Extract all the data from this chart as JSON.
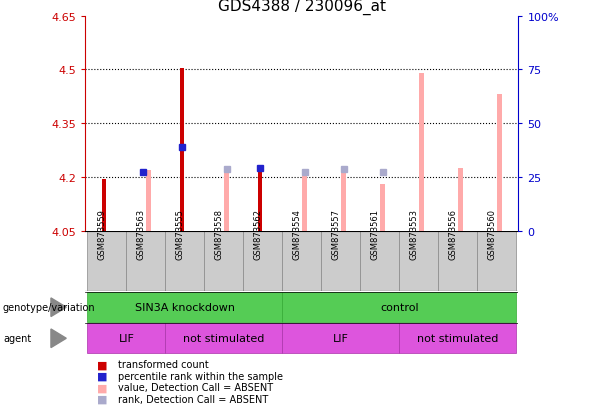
{
  "title": "GDS4388 / 230096_at",
  "samples": [
    "GSM873559",
    "GSM873563",
    "GSM873555",
    "GSM873558",
    "GSM873562",
    "GSM873554",
    "GSM873557",
    "GSM873561",
    "GSM873553",
    "GSM873556",
    "GSM873560"
  ],
  "ylim": [
    4.05,
    4.65
  ],
  "yticks": [
    4.05,
    4.2,
    4.35,
    4.5,
    4.65
  ],
  "y2labels": [
    "0",
    "25",
    "50",
    "75",
    "100%"
  ],
  "red_bars": [
    4.195,
    null,
    4.505,
    null,
    4.225,
    null,
    null,
    null,
    null,
    null,
    null
  ],
  "pink_bars": [
    null,
    4.22,
    null,
    4.225,
    null,
    4.21,
    4.225,
    4.18,
    4.49,
    4.225,
    4.43
  ],
  "blue_squares_y": [
    null,
    4.215,
    4.285,
    null,
    4.225,
    null,
    null,
    null,
    null,
    null,
    null
  ],
  "light_blue_squares_y": [
    null,
    null,
    null,
    4.222,
    null,
    4.215,
    4.222,
    4.215,
    null,
    null,
    null
  ],
  "genotype_groups": [
    {
      "label": "SIN3A knockdown",
      "start": 0,
      "end": 4,
      "color": "#66dd66"
    },
    {
      "label": "control",
      "start": 5,
      "end": 10,
      "color": "#66dd66"
    }
  ],
  "agent_groups": [
    {
      "label": "LIF",
      "start": 0,
      "end": 1,
      "color": "#dd66dd"
    },
    {
      "label": "not stimulated",
      "start": 2,
      "end": 4,
      "color": "#dd66dd"
    },
    {
      "label": "LIF",
      "start": 5,
      "end": 7,
      "color": "#dd66dd"
    },
    {
      "label": "not stimulated",
      "start": 8,
      "end": 10,
      "color": "#dd66dd"
    }
  ],
  "red_color": "#cc0000",
  "pink_color": "#ffaaaa",
  "blue_color": "#2222cc",
  "light_blue_color": "#aaaacc",
  "bg_color": "#ffffff",
  "left_axis_color": "#cc0000",
  "right_axis_color": "#0000cc",
  "green_color": "#55cc55",
  "green_edge": "#33aa33",
  "magenta_color": "#dd55dd",
  "magenta_edge": "#aa33aa"
}
